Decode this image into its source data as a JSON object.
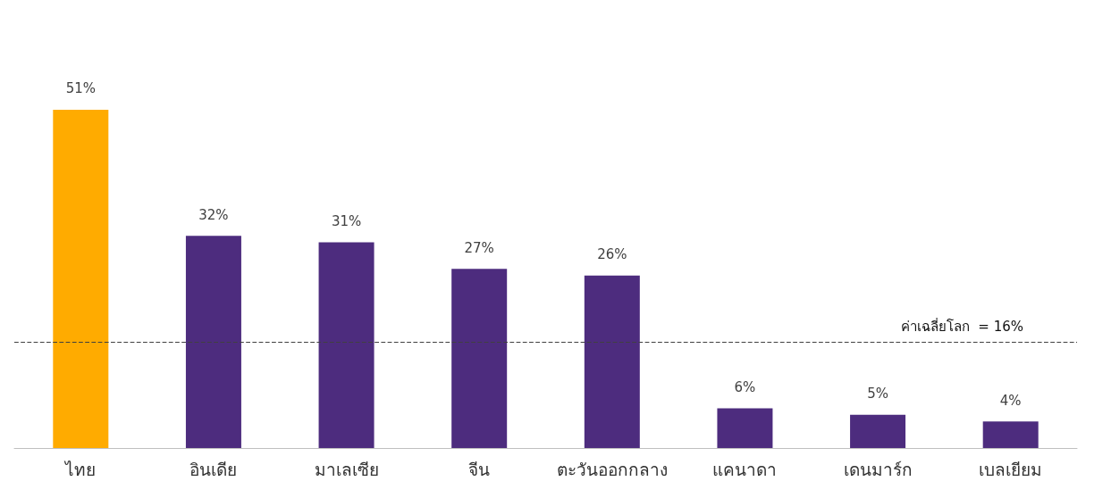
{
  "chart_data": {
    "type": "bar",
    "categories": [
      "ไทย",
      "อินเดีย",
      "มาเลเซีย",
      "จีน",
      "ตะวันออกกลาง",
      "แคนาดา",
      "เดนมาร์ก",
      "เบลเยียม"
    ],
    "values": [
      51,
      32,
      31,
      27,
      26,
      6,
      5,
      4
    ],
    "value_labels": [
      "51%",
      "32%",
      "31%",
      "27%",
      "26%",
      "6%",
      "5%",
      "4%"
    ],
    "colors": [
      "#ffab00",
      "#4d2c7e",
      "#4d2c7e",
      "#4d2c7e",
      "#4d2c7e",
      "#4d2c7e",
      "#4d2c7e",
      "#4d2c7e"
    ],
    "ref_lines": [
      {
        "axis": "y",
        "value": 16,
        "label": "ค่าเฉลี่ยโลก  = 16%",
        "color": "#404040",
        "line_style": "dashed"
      }
    ]
  }
}
